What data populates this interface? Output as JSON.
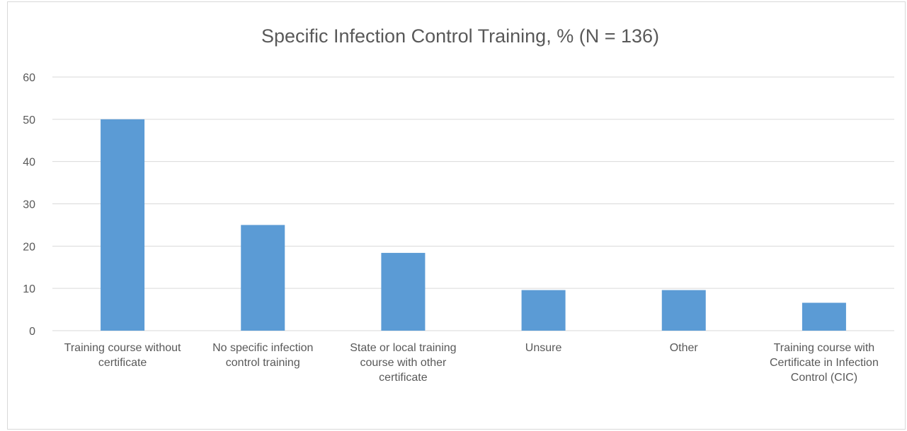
{
  "chart_data": {
    "type": "bar",
    "title": "Specific Infection Control Training, % (N = 136)",
    "categories": [
      "Training course without certificate",
      "No specific infection control training",
      "State or local training course with other certificate",
      "Unsure",
      "Other",
      "Training course with Certificate in Infection Control (CIC)"
    ],
    "values": [
      50,
      25,
      18.4,
      9.6,
      9.6,
      6.6
    ],
    "color": "#5b9bd5",
    "ylim": [
      0,
      60
    ],
    "yticks": [
      0,
      10,
      20,
      30,
      40,
      50,
      60
    ],
    "grid": true
  }
}
